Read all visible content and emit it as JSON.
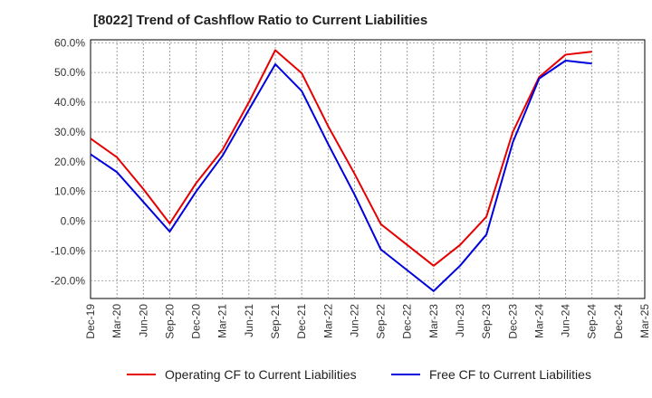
{
  "chart_data": {
    "type": "line",
    "title": "[8022]  Trend of Cashflow Ratio to Current Liabilities",
    "xlabel": "",
    "ylabel": "",
    "x_categories": [
      "Dec-19",
      "Mar-20",
      "Jun-20",
      "Sep-20",
      "Dec-20",
      "Mar-21",
      "Jun-21",
      "Sep-21",
      "Dec-21",
      "Mar-22",
      "Jun-22",
      "Sep-22",
      "Dec-22",
      "Mar-23",
      "Jun-23",
      "Sep-23",
      "Dec-23",
      "Mar-24",
      "Jun-24",
      "Sep-24",
      "Dec-24",
      "Mar-25"
    ],
    "y_ticks": [
      "60.0%",
      "50.0%",
      "40.0%",
      "30.0%",
      "20.0%",
      "10.0%",
      "0.0%",
      "-10.0%",
      "-20.0%"
    ],
    "y_tick_values": [
      60,
      50,
      40,
      30,
      20,
      10,
      0,
      -10,
      -20
    ],
    "ylim": [
      -26,
      61
    ],
    "grid": true,
    "legend_position": "bottom",
    "series": [
      {
        "name": "Operating CF to Current Liabilities",
        "color": "#e60000",
        "values": [
          27.8,
          21.5,
          10.8,
          -0.8,
          12.8,
          24.0,
          40.0,
          57.5,
          49.8,
          32.0,
          16.0,
          -1.0,
          -8.0,
          -15.0,
          -8.0,
          1.5,
          30.0,
          48.5,
          56.0,
          57.0,
          null,
          null
        ]
      },
      {
        "name": "Free CF to Current Liabilities",
        "color": "#0000dd",
        "values": [
          22.5,
          16.5,
          6.5,
          -3.5,
          10.0,
          22.0,
          37.5,
          52.8,
          43.8,
          26.0,
          9.0,
          -9.5,
          -16.5,
          -23.5,
          -15.0,
          -4.5,
          26.5,
          48.0,
          54.0,
          53.0,
          null,
          null
        ]
      }
    ]
  }
}
